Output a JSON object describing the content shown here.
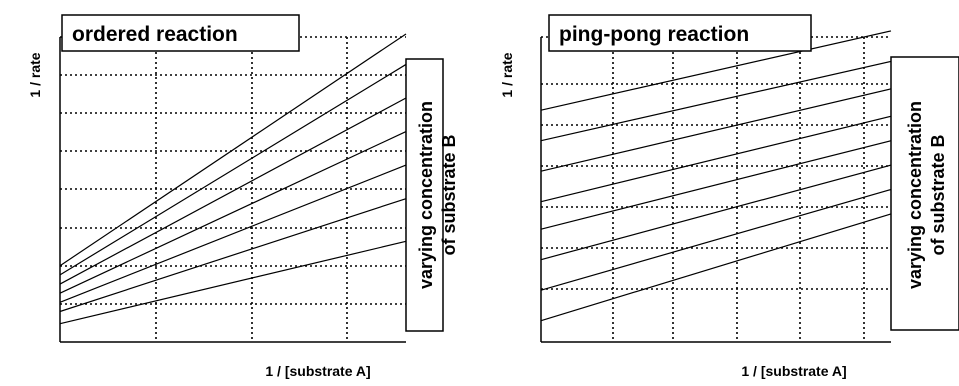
{
  "chart_data": [
    {
      "type": "line",
      "title": "ordered reaction",
      "xlabel": "1 / [substrate A]",
      "ylabel": "1 / rate",
      "annotation": [
        "varying concentration",
        "of substrate B"
      ],
      "grid": true,
      "grid_style": "dotted",
      "xlim": [
        0,
        1
      ],
      "ylim": [
        0,
        1
      ],
      "series": [
        {
          "x": [
            0,
            1
          ],
          "y": [
            0.06,
            0.33
          ]
        },
        {
          "x": [
            0,
            1
          ],
          "y": [
            0.1,
            0.47
          ]
        },
        {
          "x": [
            0,
            1
          ],
          "y": [
            0.13,
            0.58
          ]
        },
        {
          "x": [
            0,
            1
          ],
          "y": [
            0.16,
            0.69
          ]
        },
        {
          "x": [
            0,
            1
          ],
          "y": [
            0.19,
            0.8
          ]
        },
        {
          "x": [
            0,
            1
          ],
          "y": [
            0.22,
            0.91
          ]
        },
        {
          "x": [
            0,
            1
          ],
          "y": [
            0.25,
            1.01
          ]
        }
      ]
    },
    {
      "type": "line",
      "title": "ping-pong reaction",
      "xlabel": "1 / [substrate A]",
      "ylabel": "1 / rate",
      "annotation": [
        "varying concentration",
        "of substrate B"
      ],
      "grid": true,
      "grid_style": "dotted",
      "xlim": [
        0,
        1
      ],
      "ylim": [
        0,
        1
      ],
      "series": [
        {
          "x": [
            0,
            1
          ],
          "y": [
            0.07,
            0.42
          ]
        },
        {
          "x": [
            0,
            1
          ],
          "y": [
            0.17,
            0.5
          ]
        },
        {
          "x": [
            0,
            1
          ],
          "y": [
            0.27,
            0.58
          ]
        },
        {
          "x": [
            0,
            1
          ],
          "y": [
            0.37,
            0.66
          ]
        },
        {
          "x": [
            0,
            1
          ],
          "y": [
            0.46,
            0.74
          ]
        },
        {
          "x": [
            0,
            1
          ],
          "y": [
            0.56,
            0.83
          ]
        },
        {
          "x": [
            0,
            1
          ],
          "y": [
            0.66,
            0.92
          ]
        },
        {
          "x": [
            0,
            1
          ],
          "y": [
            0.76,
            1.02
          ]
        }
      ]
    }
  ]
}
